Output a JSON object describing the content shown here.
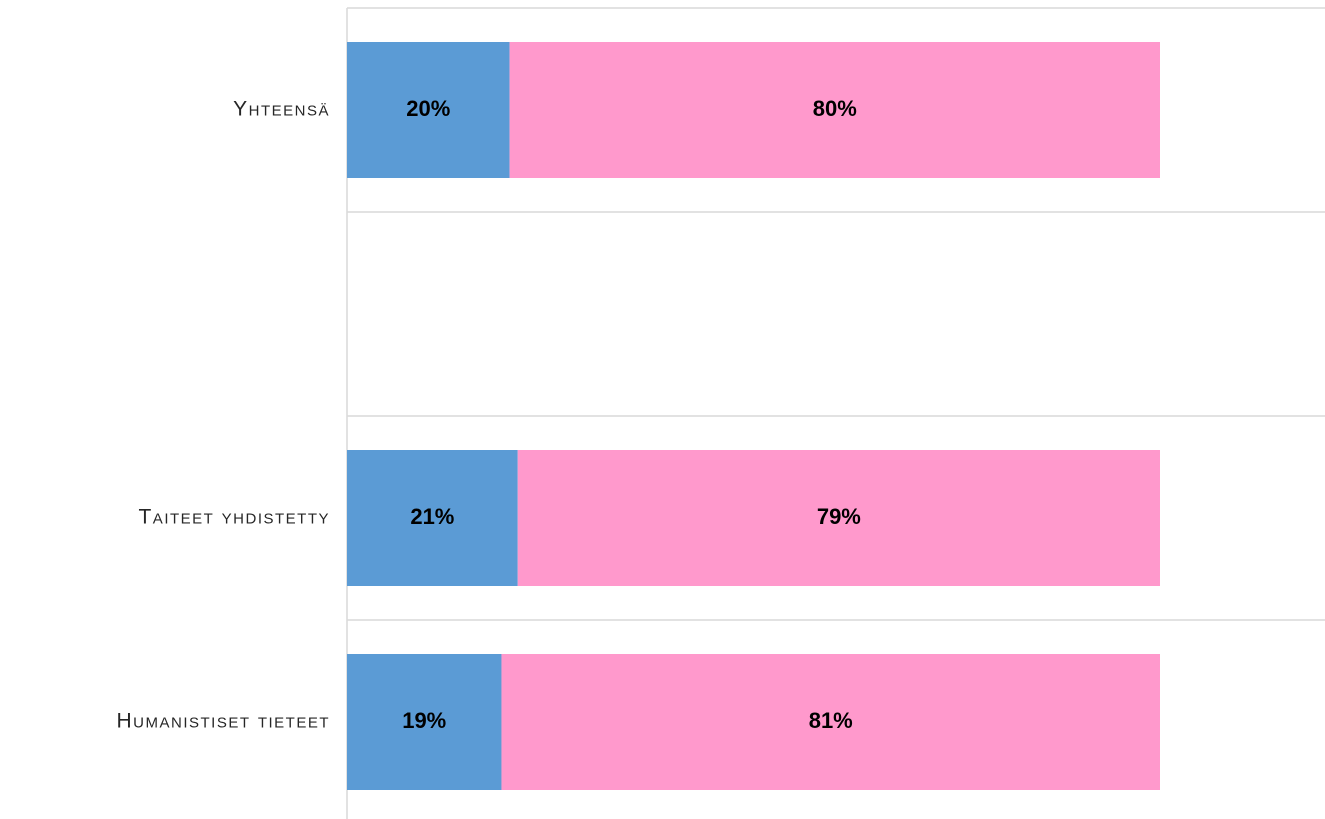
{
  "chart_data": {
    "type": "stacked-barh",
    "categories": [
      "Yhteensä",
      null,
      "Taiteet yhdistetty",
      "Humanistiset tieteet"
    ],
    "series": [
      {
        "color": "#5b9bd5",
        "values": [
          20,
          null,
          21,
          19
        ],
        "value_labels": [
          "20%",
          null,
          "21%",
          "19%"
        ]
      },
      {
        "color": "#ff99cc",
        "values": [
          80,
          null,
          79,
          81
        ],
        "value_labels": [
          "80%",
          null,
          "79%",
          "81%"
        ]
      }
    ],
    "xlim": [
      0,
      100
    ]
  }
}
